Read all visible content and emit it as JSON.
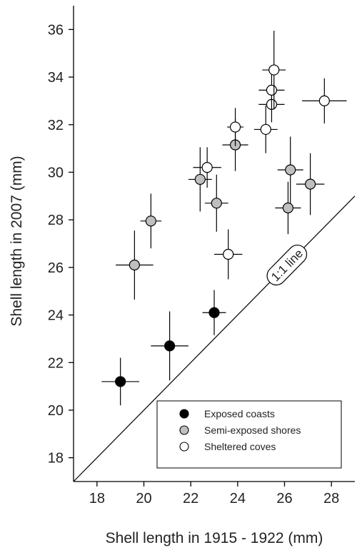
{
  "chart_data": {
    "type": "scatter",
    "title": "",
    "xlabel": "Shell length in 1915 - 1922 (mm)",
    "ylabel": "Shell length in 2007 (mm)",
    "xlim": [
      17,
      29
    ],
    "ylim": [
      17,
      37
    ],
    "xticks": [
      18,
      20,
      22,
      24,
      26,
      28
    ],
    "yticks": [
      18,
      20,
      22,
      24,
      26,
      28,
      30,
      32,
      34,
      36
    ],
    "grid": false,
    "legend_position": "bottom-right",
    "annotation": "1:1 line",
    "series": [
      {
        "name": "Exposed coasts",
        "color": "#000000",
        "points": [
          {
            "x": 19.0,
            "y": 21.2,
            "xerr": 0.8,
            "yerr": 1.0
          },
          {
            "x": 21.1,
            "y": 22.7,
            "xerr": 0.8,
            "yerr": 1.45
          },
          {
            "x": 23.0,
            "y": 24.1,
            "xerr": 0.5,
            "yerr": 0.95
          }
        ]
      },
      {
        "name": "Semi-exposed shores",
        "color": "#bfbfbf",
        "points": [
          {
            "x": 19.6,
            "y": 26.1,
            "xerr": 0.8,
            "yerr": 1.45
          },
          {
            "x": 20.3,
            "y": 27.95,
            "xerr": 0.45,
            "yerr": 1.15
          },
          {
            "x": 22.4,
            "y": 29.7,
            "xerr": 0.5,
            "yerr": 1.35
          },
          {
            "x": 23.1,
            "y": 28.7,
            "xerr": 0.5,
            "yerr": 1.2
          },
          {
            "x": 23.9,
            "y": 31.15,
            "xerr": 0.55,
            "yerr": 1.1
          },
          {
            "x": 26.15,
            "y": 28.5,
            "xerr": 0.55,
            "yerr": 1.1
          },
          {
            "x": 26.25,
            "y": 30.1,
            "xerr": 0.55,
            "yerr": 1.4
          },
          {
            "x": 27.1,
            "y": 29.5,
            "xerr": 0.6,
            "yerr": 1.3
          }
        ]
      },
      {
        "name": "Sheltered coves",
        "color": "#ffffff",
        "points": [
          {
            "x": 22.7,
            "y": 30.2,
            "xerr": 0.6,
            "yerr": 0.85
          },
          {
            "x": 23.6,
            "y": 26.55,
            "xerr": 0.6,
            "yerr": 1.05
          },
          {
            "x": 23.9,
            "y": 31.9,
            "xerr": 0.35,
            "yerr": 0.8
          },
          {
            "x": 25.2,
            "y": 31.8,
            "xerr": 0.5,
            "yerr": 1.0
          },
          {
            "x": 25.45,
            "y": 32.85,
            "xerr": 0.55,
            "yerr": 0.75
          },
          {
            "x": 25.45,
            "y": 33.45,
            "xerr": 0.55,
            "yerr": 0.85
          },
          {
            "x": 25.55,
            "y": 34.3,
            "xerr": 0.5,
            "yerr": 1.65
          },
          {
            "x": 27.7,
            "y": 33.0,
            "xerr": 0.95,
            "yerr": 0.95
          }
        ]
      }
    ]
  }
}
